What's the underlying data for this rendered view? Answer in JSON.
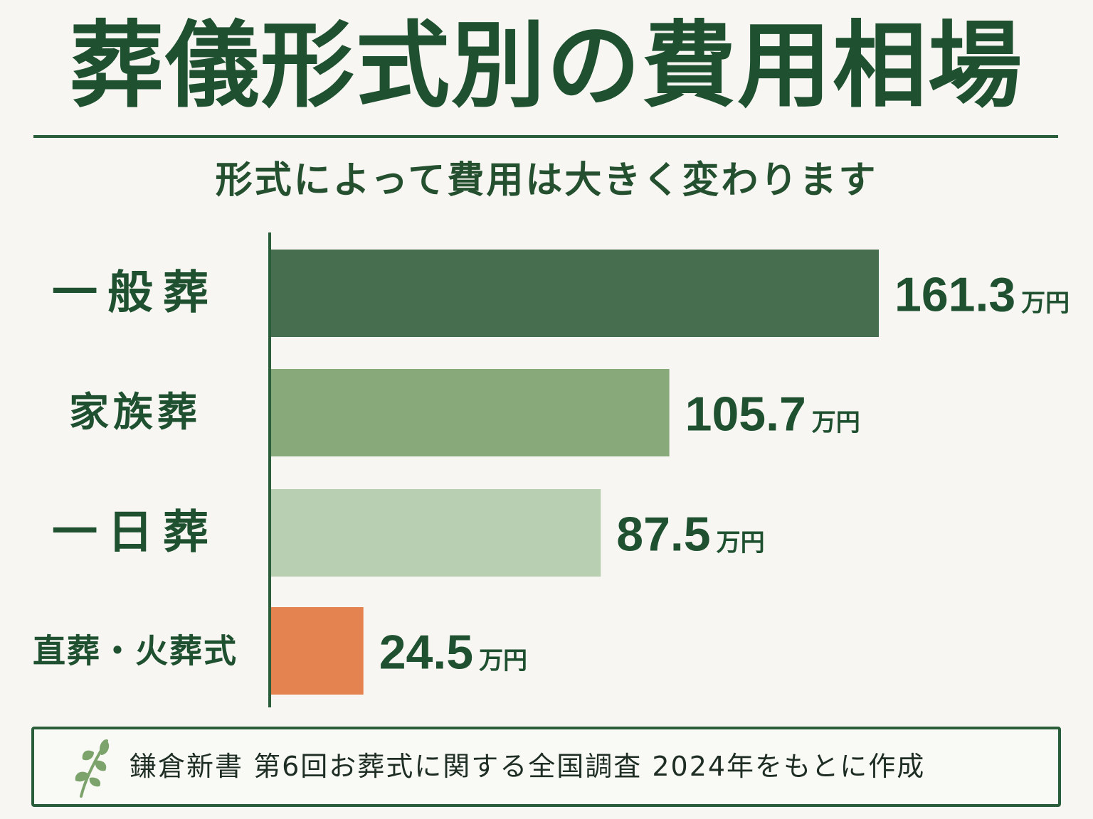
{
  "title": "葬儀形式別の費用相場",
  "subtitle": "形式によって費用は大きく変わります",
  "chart_data": {
    "type": "bar",
    "orientation": "horizontal",
    "categories": [
      "一般葬",
      "家族葬",
      "一日葬",
      "直葬・火葬式"
    ],
    "values": [
      161.3,
      105.7,
      87.5,
      24.5
    ],
    "value_labels": [
      "161.3",
      "105.7",
      "87.5",
      "24.5"
    ],
    "unit": "万円",
    "colors": [
      "#476e4f",
      "#88a97a",
      "#b8cfb2",
      "#e58350"
    ],
    "xlim": [
      0,
      161.3
    ],
    "grid": false,
    "legend": "none"
  },
  "source": {
    "icon": "leaf-icon",
    "text": "鎌倉新書 第6回お葬式に関する全国調査 2024年をもとに作成"
  }
}
